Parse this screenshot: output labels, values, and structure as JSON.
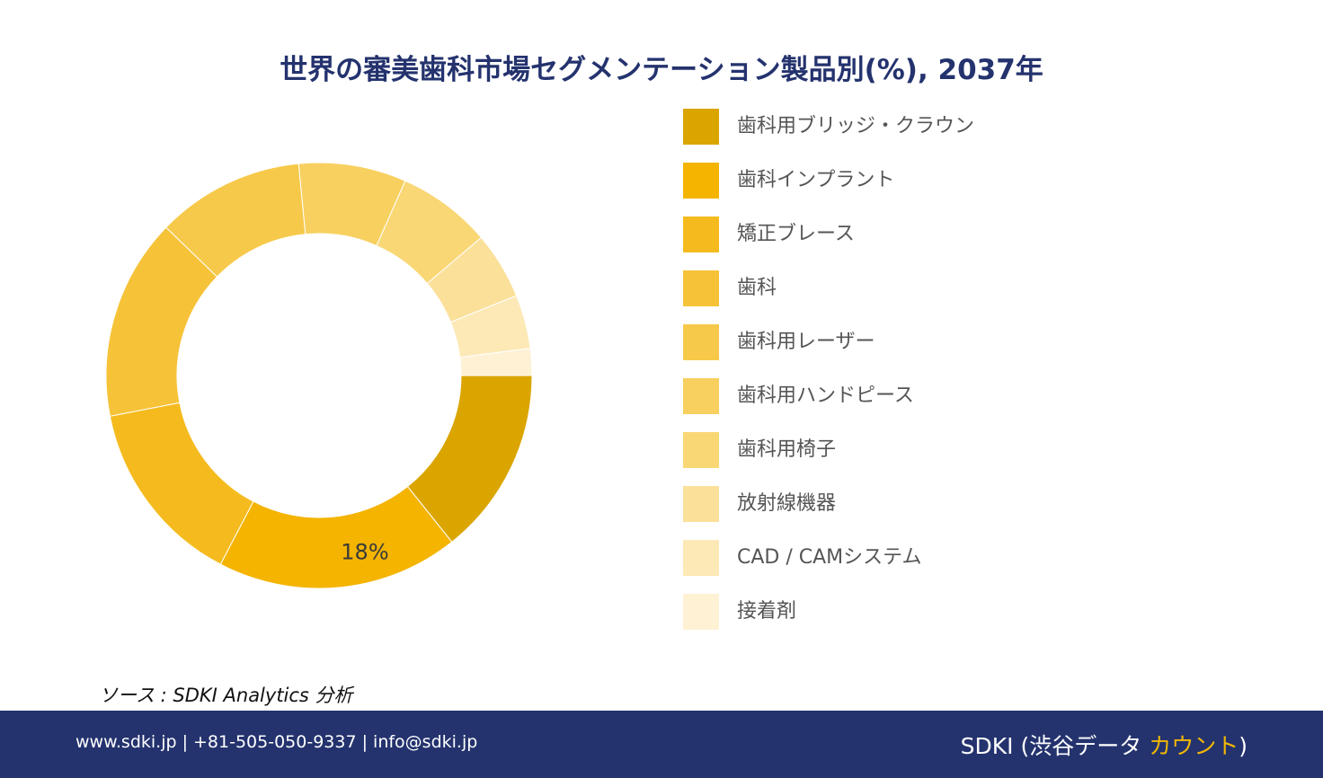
{
  "title": "世界の審美歯科市場セグメンテーション製品別(%), 2037年",
  "chart_data": {
    "type": "pie",
    "donut": true,
    "title": "世界の審美歯科市場セグメンテーション製品別(%), 2037年",
    "legend_position": "right",
    "categories": [
      "歯科用ブリッジ・クラウン",
      "歯科インプラント",
      "矯正ブレース",
      "歯科",
      "歯科用レーザー",
      "歯科用ハンドピース",
      "歯科用椅子",
      "放射線機器",
      "CAD / CAMシステム",
      "接着剤"
    ],
    "values": [
      14,
      18,
      14,
      15,
      11,
      8,
      7,
      5,
      4,
      2
    ],
    "colors": [
      "#dba500",
      "#f4b400",
      "#f5bb1e",
      "#f6c238",
      "#f7c94a",
      "#f8d05f",
      "#f9d774",
      "#fbe09a",
      "#fde9b6",
      "#fef1d4"
    ],
    "data_labels": [
      {
        "index": 1,
        "text": "18%"
      }
    ]
  },
  "source": "ソース : SDKI Analytics 分析",
  "footer": {
    "contact": "www.sdki.jp | +81-505-050-9337 | info@sdki.jp",
    "brand_prefix": "SDKI (渋谷データ ",
    "brand_accent": "カウント",
    "brand_suffix": ")"
  }
}
